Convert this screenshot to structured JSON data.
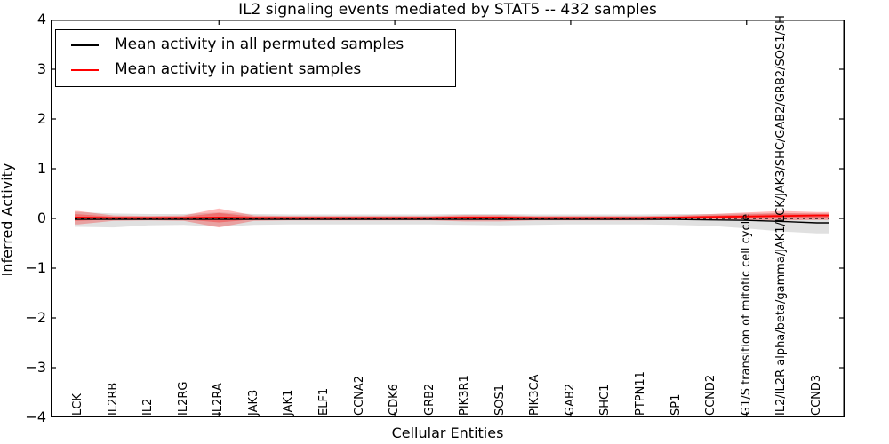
{
  "title": "IL2 signaling events mediated by STAT5 -- 432 samples",
  "axes": {
    "xlabel": "Cellular Entities",
    "ylabel": "Inferred Activity",
    "y_tick_labels": [
      "4",
      "3",
      "2",
      "1",
      "0",
      "−1",
      "−2",
      "−3",
      "−4"
    ],
    "y_tick_values": [
      4,
      3,
      2,
      1,
      0,
      -1,
      -2,
      -3,
      -4
    ]
  },
  "legend": {
    "entries": [
      {
        "label": "Mean activity in all permuted samples",
        "color": "#000000"
      },
      {
        "label": "Mean activity in patient samples",
        "color": "#ff0000"
      }
    ]
  },
  "chart_data": {
    "type": "line",
    "title": "IL2 signaling events mediated by STAT5 -- 432 samples",
    "xlabel": "Cellular Entities",
    "ylabel": "Inferred Activity",
    "ylim": [
      -4,
      4
    ],
    "grid": false,
    "legend_position": "upper left",
    "categories": [
      "LCK",
      "IL2RB",
      "IL2",
      "IL2RG",
      "IL2RA",
      "JAK3",
      "JAK1",
      "ELF1",
      "CCNA2",
      "CDK6",
      "GRB2",
      "PIK3R1",
      "SOS1",
      "PIK3CA",
      "GAB2",
      "SHC1",
      "PTPN11",
      "SP1",
      "CCND2",
      "G1/S transition of mitotic cell cycle",
      "IL2/IL2R alpha/beta/gamma/JAK1/LCK/JAK3/SHC/GAB2/GRB2/SOS1/SH",
      "CCND3"
    ],
    "x_tick_indices": [
      4,
      9,
      14,
      19
    ],
    "zero_line": 0,
    "series": [
      {
        "name": "Mean activity in all permuted samples",
        "color": "#000000",
        "values": [
          -0.02,
          -0.02,
          -0.02,
          -0.02,
          -0.02,
          -0.02,
          -0.02,
          -0.02,
          -0.02,
          -0.02,
          -0.02,
          -0.02,
          -0.02,
          -0.02,
          -0.02,
          -0.02,
          -0.02,
          -0.02,
          -0.03,
          -0.04,
          -0.06,
          -0.09
        ]
      },
      {
        "name": "Mean activity in patient samples",
        "color": "#ff0000",
        "values": [
          0.02,
          0.01,
          0.01,
          0.01,
          0.02,
          0.01,
          0.01,
          0.01,
          0.01,
          0.01,
          0.01,
          0.02,
          0.02,
          0.01,
          0.01,
          0.01,
          0.01,
          0.02,
          0.03,
          0.04,
          0.05,
          0.06
        ]
      }
    ],
    "bands": [
      {
        "name": "permuted-samples-envelope",
        "color": "rgba(0,0,0,0.12)",
        "upper": [
          0.13,
          0.1,
          0.09,
          0.09,
          0.12,
          0.09,
          0.08,
          0.08,
          0.08,
          0.08,
          0.08,
          0.09,
          0.09,
          0.08,
          0.08,
          0.08,
          0.08,
          0.09,
          0.09,
          0.1,
          0.11,
          0.1
        ],
        "lower": [
          -0.17,
          -0.18,
          -0.14,
          -0.13,
          -0.17,
          -0.13,
          -0.12,
          -0.12,
          -0.12,
          -0.12,
          -0.12,
          -0.13,
          -0.14,
          -0.13,
          -0.12,
          -0.12,
          -0.12,
          -0.13,
          -0.15,
          -0.2,
          -0.26,
          -0.3
        ]
      },
      {
        "name": "patient-samples-envelope",
        "color": "rgba(255,0,0,0.28)",
        "upper": [
          0.15,
          0.06,
          0.05,
          0.06,
          0.2,
          0.06,
          0.05,
          0.05,
          0.05,
          0.05,
          0.05,
          0.07,
          0.07,
          0.05,
          0.05,
          0.05,
          0.05,
          0.06,
          0.09,
          0.12,
          0.15,
          0.13
        ],
        "lower": [
          -0.12,
          -0.05,
          -0.04,
          -0.05,
          -0.18,
          -0.05,
          -0.04,
          -0.04,
          -0.04,
          -0.04,
          -0.04,
          -0.06,
          -0.06,
          -0.04,
          -0.04,
          -0.04,
          -0.04,
          -0.03,
          -0.03,
          -0.04,
          -0.04,
          -0.03
        ]
      }
    ]
  }
}
